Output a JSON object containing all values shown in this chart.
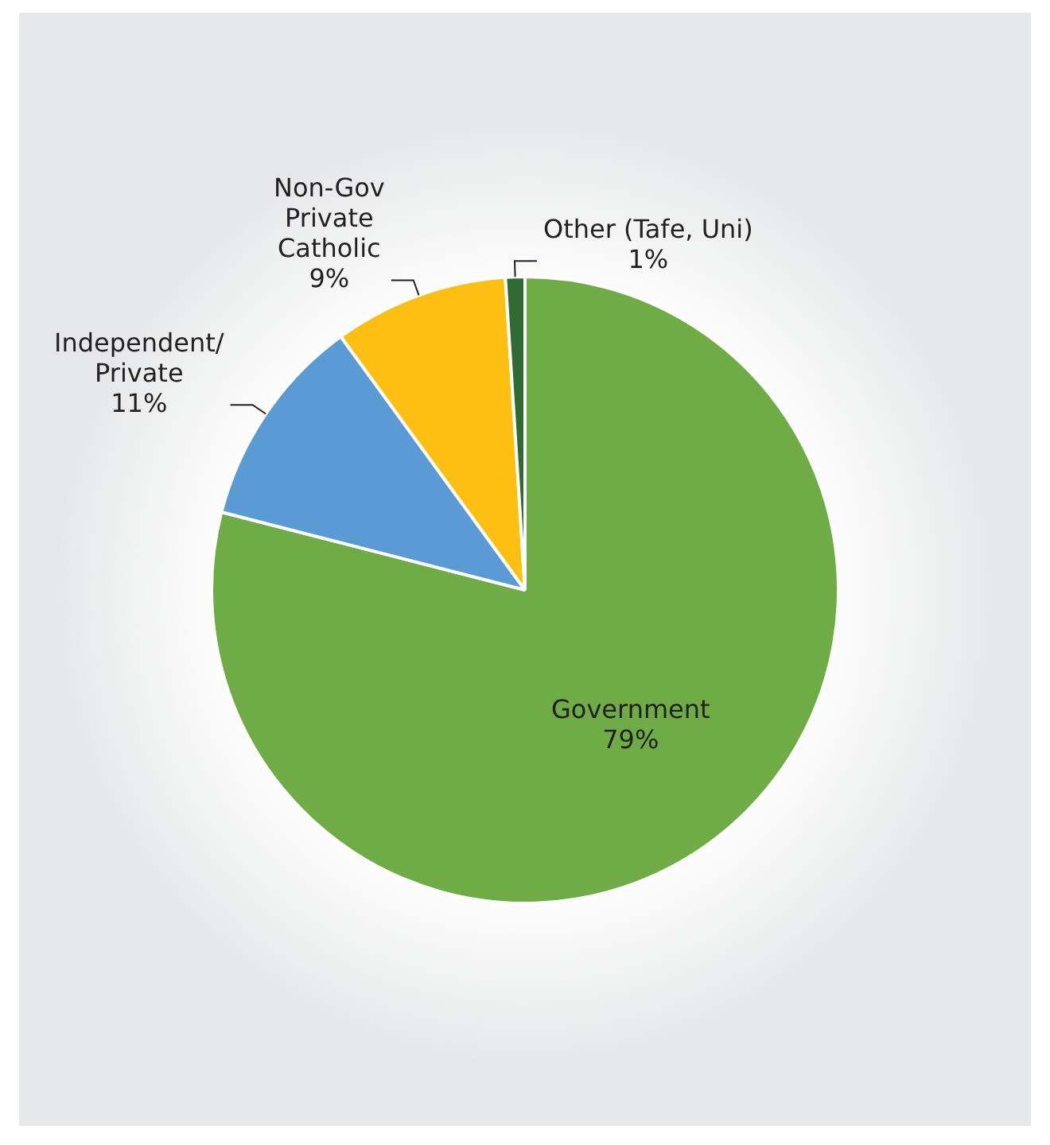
{
  "chart_data": {
    "type": "pie",
    "categories": [
      "Government",
      "Independent/Private",
      "Non-Gov Private Catholic",
      "Other (Tafe, Uni)"
    ],
    "values": [
      79,
      11,
      9,
      1
    ],
    "value_labels": [
      "79%",
      "11%",
      "9%",
      "1%"
    ],
    "colors": [
      "#6fac46",
      "#5a9bd5",
      "#fdbf12",
      "#2f6b33"
    ],
    "legend": false
  }
}
